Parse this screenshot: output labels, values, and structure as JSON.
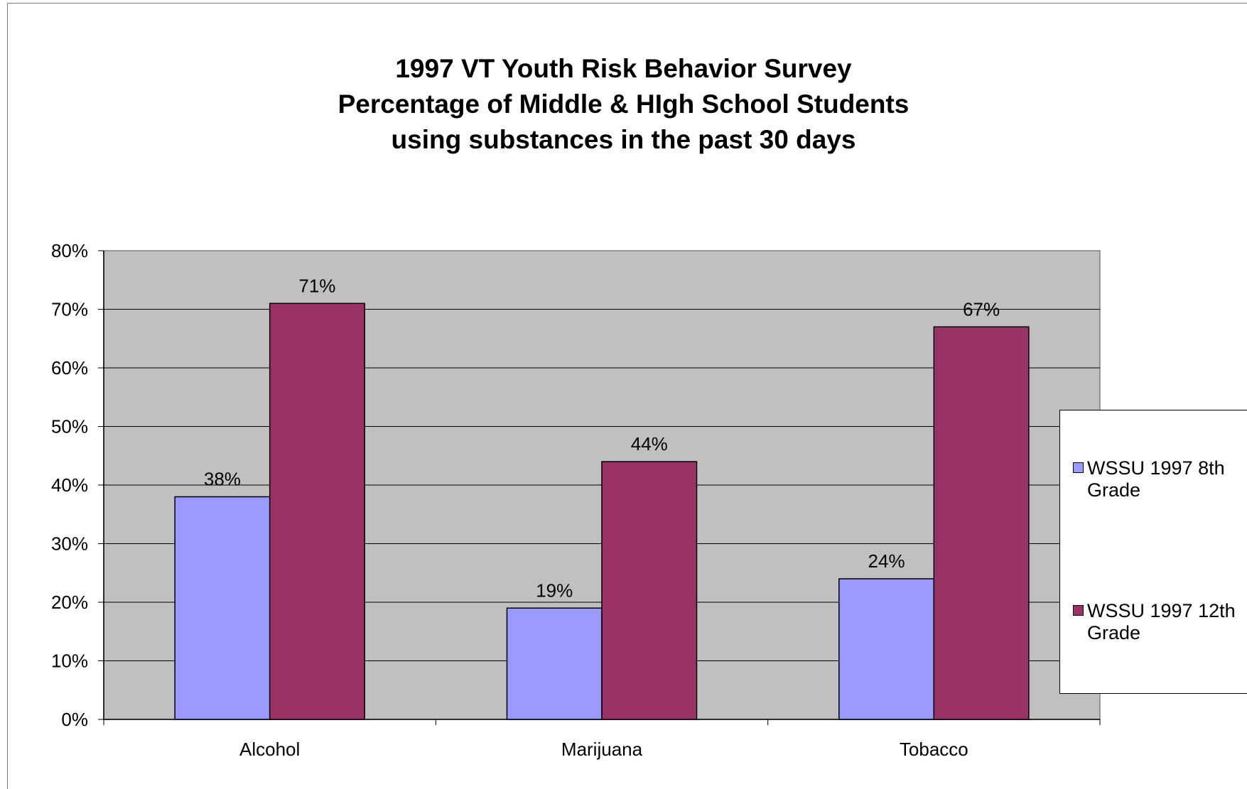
{
  "chart_data": {
    "type": "bar",
    "title_lines": [
      "1997 VT Youth Risk Behavior Survey",
      "Percentage of Middle & HIgh School Students",
      "using substances in the past 30 days"
    ],
    "categories": [
      "Alcohol",
      "Marijuana",
      "Tobacco"
    ],
    "series": [
      {
        "name": "WSSU 1997 8th Grade",
        "legend_lines": [
          "WSSU 1997 8th",
          "Grade"
        ],
        "values": [
          38,
          19,
          24
        ],
        "labels": [
          "38%",
          "19%",
          "24%"
        ],
        "color": "#9999FF"
      },
      {
        "name": "WSSU 1997 12th Grade",
        "legend_lines": [
          "WSSU 1997 12th",
          "Grade"
        ],
        "values": [
          71,
          44,
          67
        ],
        "labels": [
          "71%",
          "44%",
          "67%"
        ],
        "color": "#993366"
      }
    ],
    "ylim": [
      0,
      80
    ],
    "yticks": [
      "0%",
      "10%",
      "20%",
      "30%",
      "40%",
      "50%",
      "60%",
      "70%",
      "80%"
    ],
    "grid": true,
    "plot_background": "#C0C0C0",
    "legend_position": "right",
    "xlabel": "",
    "ylabel": ""
  }
}
